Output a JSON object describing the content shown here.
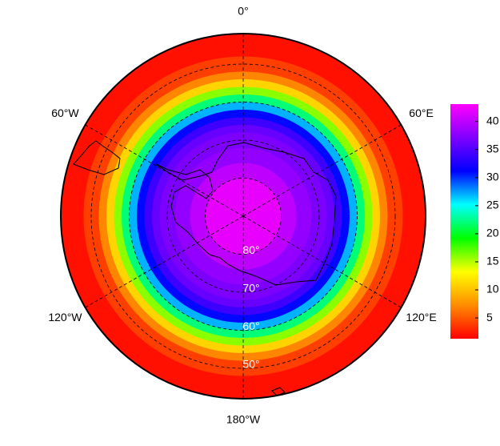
{
  "chart_data": {
    "type": "polar-map",
    "lat_edges": [
      90,
      80,
      76,
      72,
      68,
      66,
      64,
      62,
      60,
      58,
      56,
      54,
      52,
      48,
      42
    ],
    "values": [
      42,
      40,
      38,
      37,
      36,
      34,
      31,
      27,
      22,
      16,
      11,
      7,
      4,
      2
    ],
    "latlim": [
      90,
      42
    ],
    "lat_lines": [
      {
        "value": 80,
        "label": "80°"
      },
      {
        "value": 70,
        "label": "70°"
      },
      {
        "value": 60,
        "label": "60°"
      },
      {
        "value": 50,
        "label": "50°"
      }
    ],
    "lon_lines": [
      {
        "value": 0,
        "label": "0°"
      },
      {
        "value": 60,
        "label": "60°E"
      },
      {
        "value": -60,
        "label": "60°W"
      },
      {
        "value": 120,
        "label": "120°E"
      },
      {
        "value": -120,
        "label": "120°W"
      },
      {
        "value": 180,
        "label": "180°W"
      }
    ],
    "colormap": [
      "#ff0000",
      "#ff8c00",
      "#ffff00",
      "#00ff00",
      "#00ffff",
      "#0000ff",
      "#8000ff",
      "#ff00ff"
    ],
    "clim": [
      1.3,
      43.1
    ],
    "cticks": [
      5,
      10,
      15,
      20,
      25,
      30,
      35,
      40
    ]
  }
}
